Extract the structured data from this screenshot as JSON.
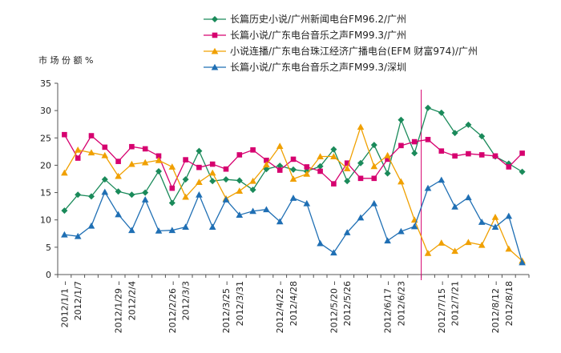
{
  "chart_data": {
    "type": "line",
    "title": "",
    "ylabel": "市 场 份 额  %",
    "xlabel": "",
    "ylim": [
      0,
      35
    ],
    "yticks": [
      0,
      5,
      10,
      15,
      20,
      25,
      30,
      35
    ],
    "grid": false,
    "legend_position": "top",
    "x_tick_labels": [
      {
        "i": 0,
        "label": "2012/1/1 –"
      },
      {
        "i": 1,
        "label": "2012/1/7"
      },
      {
        "i": 4,
        "label": "2012/1/29 –"
      },
      {
        "i": 5,
        "label": "2012/2/4"
      },
      {
        "i": 8,
        "label": "2012/2/26 –"
      },
      {
        "i": 9,
        "label": "2012/3/3"
      },
      {
        "i": 12,
        "label": "2012/3/25 –"
      },
      {
        "i": 13,
        "label": "2012/3/31"
      },
      {
        "i": 16,
        "label": "2012/4/22 –"
      },
      {
        "i": 17,
        "label": "2012/4/28"
      },
      {
        "i": 20,
        "label": "2012/5/20 –"
      },
      {
        "i": 21,
        "label": "2012/5/26"
      },
      {
        "i": 24,
        "label": "2012/6/17 –"
      },
      {
        "i": 25,
        "label": "2012/6/23"
      },
      {
        "i": 28,
        "label": "2012/7/15 –"
      },
      {
        "i": 29,
        "label": "2012/7/21"
      },
      {
        "i": 32,
        "label": "2012/8/12 –"
      },
      {
        "i": 33,
        "label": "2012/8/18"
      }
    ],
    "n_points": 35,
    "event_line_index": 26.5,
    "series": [
      {
        "name": "长篇历史小说/广州新闻电台FM96.2/广州",
        "color": "#1a8a5a",
        "marker": "diamond",
        "values": [
          11.7,
          14.6,
          14.3,
          17.4,
          15.2,
          14.6,
          15.0,
          18.9,
          13.1,
          17.4,
          22.6,
          17.1,
          17.4,
          17.2,
          15.5,
          19.3,
          19.9,
          19.2,
          18.9,
          19.8,
          22.9,
          17.1,
          20.4,
          23.7,
          18.5,
          28.3,
          22.2,
          30.5,
          29.6,
          25.9,
          27.4,
          25.3,
          21.6,
          20.3,
          18.8
        ]
      },
      {
        "name": "长篇小说/广东电台音乐之声FM99.3/广州",
        "color": "#d6006f",
        "marker": "square",
        "values": [
          25.6,
          21.3,
          25.4,
          23.3,
          20.7,
          23.4,
          23.0,
          21.7,
          15.8,
          21.0,
          19.6,
          20.2,
          19.3,
          21.9,
          22.8,
          20.9,
          19.1,
          21.1,
          19.7,
          18.9,
          16.6,
          20.4,
          17.6,
          17.6,
          21.1,
          23.6,
          24.3,
          24.7,
          22.6,
          21.7,
          22.1,
          21.9,
          21.7,
          19.7,
          22.2
        ]
      },
      {
        "name": "小说连播/广东电台珠江经济广播电台(EFM 财富974)/广州",
        "color": "#f0a000",
        "marker": "triangle",
        "values": [
          18.6,
          22.8,
          22.3,
          21.8,
          18.0,
          20.2,
          20.5,
          20.9,
          19.7,
          14.2,
          16.9,
          18.6,
          13.9,
          15.3,
          17.1,
          20.1,
          23.5,
          17.5,
          18.4,
          21.6,
          21.6,
          19.4,
          27.0,
          19.8,
          21.8,
          17.0,
          10.0,
          3.9,
          5.8,
          4.3,
          5.9,
          5.4,
          10.5,
          4.7,
          2.5
        ]
      },
      {
        "name": "长篇小说/广东电台音乐之声FM99.3/深圳",
        "color": "#1f6fb4",
        "marker": "triangle",
        "values": [
          7.3,
          7.0,
          8.9,
          15.1,
          11.0,
          8.1,
          13.7,
          8.0,
          8.1,
          8.7,
          14.6,
          8.7,
          13.7,
          10.9,
          11.6,
          11.9,
          9.7,
          14.0,
          13.0,
          5.7,
          4.0,
          7.7,
          10.4,
          13.0,
          6.2,
          7.9,
          8.8,
          15.8,
          17.3,
          12.4,
          14.1,
          9.6,
          8.7,
          10.7,
          2.2
        ]
      }
    ]
  }
}
